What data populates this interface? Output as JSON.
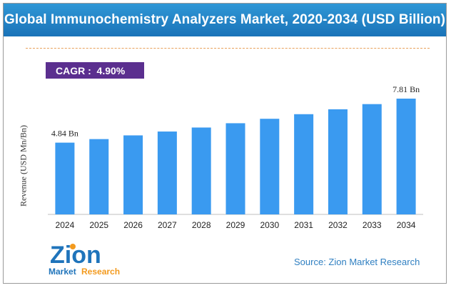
{
  "header": {
    "title": "Global Immunochemistry Analyzers Market, 2020-2034 (USD Billion)"
  },
  "cagr": {
    "label": "CAGR :  4.90%"
  },
  "chart_data": {
    "type": "bar",
    "title": "Global Immunochemistry Analyzers Market, 2020-2034 (USD Billion)",
    "ylabel": "Revenue (USD Mn/Bn)",
    "xlabel": "",
    "categories": [
      "2024",
      "2025",
      "2026",
      "2027",
      "2028",
      "2029",
      "2030",
      "2031",
      "2032",
      "2033",
      "2034"
    ],
    "values": [
      4.84,
      5.08,
      5.33,
      5.59,
      5.86,
      6.15,
      6.45,
      6.76,
      7.09,
      7.44,
      7.81
    ],
    "data_labels": [
      {
        "index": 0,
        "text": "4.84 Bn"
      },
      {
        "index": 10,
        "text": "7.81 Bn"
      }
    ],
    "bar_color": "#3a9af0",
    "grid": false
  },
  "logo": {
    "brand": "Zion",
    "sub1": "Market",
    "sub2": "Research"
  },
  "footer": {
    "source": "Source: Zion Market Research"
  },
  "colors": {
    "title_bg": "#2388cb",
    "cagr_bg": "#5b2f8f",
    "bar": "#3a9af0",
    "logo_blue": "#1f74bb",
    "logo_orange": "#f39a1e",
    "source": "#2f7fc1"
  }
}
